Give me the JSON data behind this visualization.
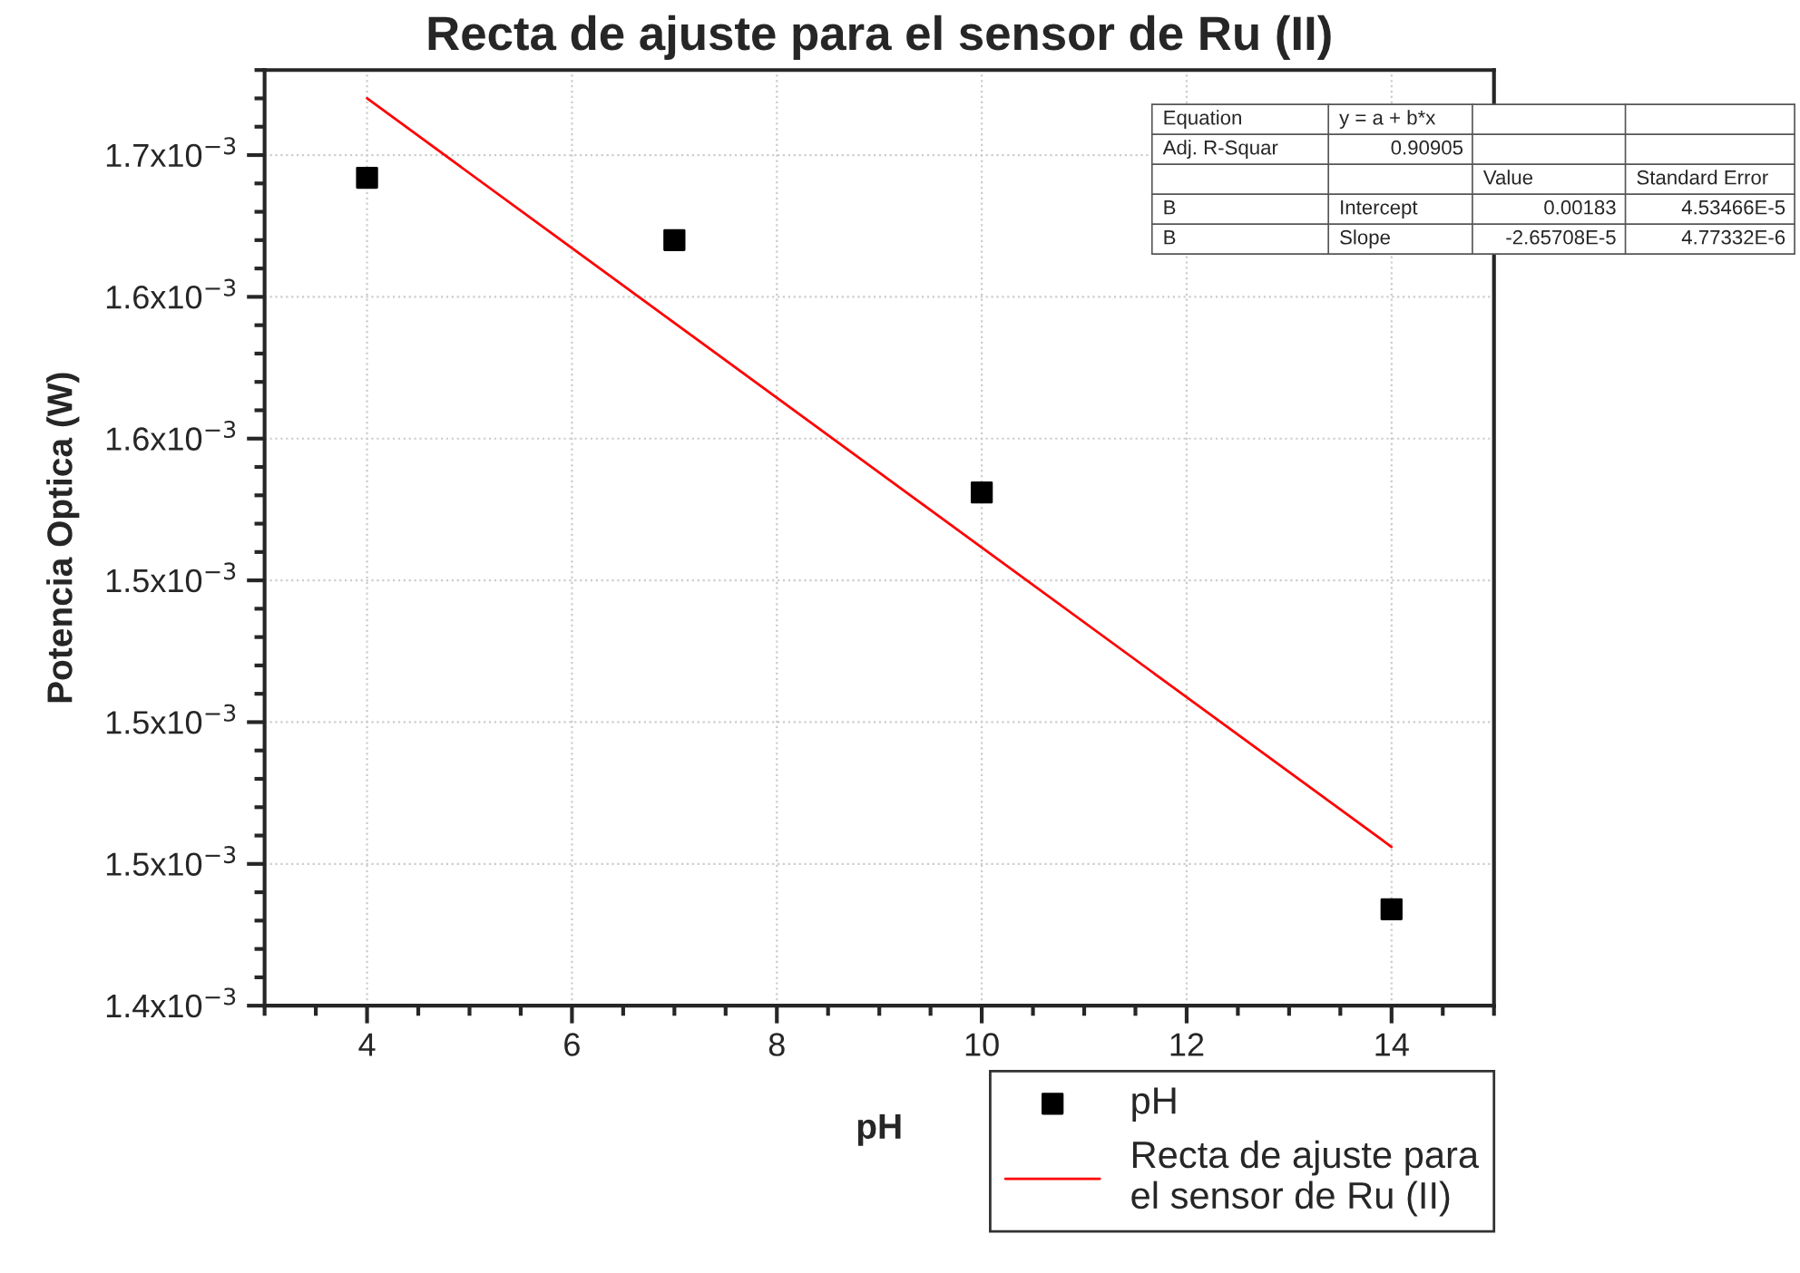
{
  "chart_data": {
    "type": "scatter",
    "title": "Recta de ajuste para el sensor de Ru (II)",
    "xlabel": "pH",
    "ylabel": "Potencia Optica (W)",
    "xlim": [
      3,
      15
    ],
    "xticks": [
      4,
      6,
      8,
      10,
      12,
      14
    ],
    "ylim": [
      0.0014,
      0.00173
    ],
    "yticks": [
      {
        "value": 0.0014,
        "label": "1.4x10$^{−3}$"
      },
      {
        "value": 0.00145,
        "label": "1.5x10$^{−3}$"
      },
      {
        "value": 0.0015,
        "label": "1.5x10$^{−3}$"
      },
      {
        "value": 0.00155,
        "label": "1.5x10$^{−3}$"
      },
      {
        "value": 0.0016,
        "label": "1.6x10$^{−3}$"
      },
      {
        "value": 0.00165,
        "label": "1.6x10$^{−3}$"
      },
      {
        "value": 0.0017,
        "label": "1.7x10$^{−3}$"
      }
    ],
    "grid": true,
    "legend": "bottom right",
    "series": [
      {
        "name": "pH",
        "marker": "square",
        "color": "#000000",
        "x": [
          4,
          7,
          10,
          14
        ],
        "values": [
          0.001692,
          0.00167,
          0.001581,
          0.001434
        ]
      },
      {
        "name": "Recta de ajuste para\nel sensor de Ru (II)",
        "type": "line",
        "marker": "none",
        "line_style": "solid",
        "color": "#ff0000",
        "x": [
          4,
          14
        ],
        "values": [
          0.00172,
          0.001456
        ]
      }
    ],
    "annotations": [
      "Equation",
      "y = a + b*x",
      "Adj. R-Squar",
      "0.90905",
      "Value",
      "Standard Error",
      "B",
      "Intercept",
      "0.00183",
      "4.53466E-5",
      "B",
      "Slope",
      "-2.65708E-5",
      "4.77332E-6"
    ]
  }
}
